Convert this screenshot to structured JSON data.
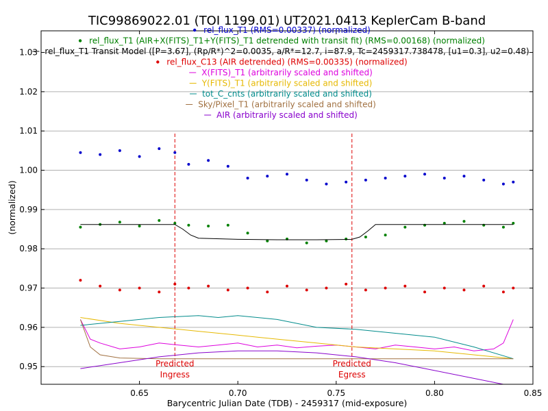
{
  "chart_data": {
    "type": "scatter",
    "title": "TIC99869022.01  (TOI 1199.01)  UT2021.0413 KeplerCam B-band",
    "xlabel": "Barycentric Julian Date (TDB) - 2459317 (mid-exposure)",
    "ylabel": "(normalized)",
    "xlim": [
      0.6,
      0.85
    ],
    "ylim": [
      0.9455,
      1.0355
    ],
    "xticks": [
      0.65,
      0.7,
      0.75,
      0.8,
      0.85
    ],
    "xtick_labels": [
      "0.65",
      "0.70",
      "0.75",
      "0.80",
      "0.85"
    ],
    "yticks": [
      0.95,
      0.96,
      0.97,
      0.98,
      0.99,
      1.0,
      1.01,
      1.02,
      1.03
    ],
    "ytick_labels": [
      "0.95",
      "0.96",
      "0.97",
      "0.98",
      "0.99",
      "1.00",
      "1.01",
      "1.02",
      "1.03"
    ],
    "grid": "horizontal",
    "legend_position": "top-center",
    "legend": [
      {
        "label": "rel_flux_T1 (RMS=0.00337) (normalized)",
        "color": "#0000cc",
        "marker": "dot"
      },
      {
        "label": "rel_flux_T1 (AIR+X(FITS)_T1+Y(FITS)_T1 detrended with transit fit) (RMS=0.00168) (normalized)",
        "color": "#008000",
        "marker": "dot"
      },
      {
        "label": "rel_flux_T1 Transit Model ([P=3.67], (Rp/R*)^2=0.0035, a/R*=12.7, i=87.9, Tc=2459317.738478, [u1=0.3], u2=0.48)",
        "color": "#000000",
        "marker": "line"
      },
      {
        "label": "rel_flux_C13 (AIR detrended) (RMS=0.00335) (normalized)",
        "color": "#dd0000",
        "marker": "dot"
      },
      {
        "label": "X(FITS)_T1 (arbitrarily scaled and shifted)",
        "color": "#dd00dd",
        "marker": "line"
      },
      {
        "label": "Y(FITS)_T1 (arbitrarily scaled and shifted)",
        "color": "#e6b800",
        "marker": "line"
      },
      {
        "label": "tot_C_cnts (arbitrarily scaled and shifted)",
        "color": "#008b8b",
        "marker": "line"
      },
      {
        "label": "Sky/Pixel_T1 (arbitrarily scaled and shifted)",
        "color": "#a07040",
        "marker": "line"
      },
      {
        "label": "AIR (arbitrarily scaled and shifted)",
        "color": "#8800cc",
        "marker": "line"
      }
    ],
    "annotations": [
      {
        "x": 0.668,
        "line1": "Predicted",
        "line2": "Ingress",
        "color": "#dd0000"
      },
      {
        "x": 0.758,
        "line1": "Predicted",
        "line2": "Egress",
        "color": "#dd0000"
      }
    ],
    "series": [
      {
        "name": "rel_flux_T1 (RMS=0.00337) (normalized)",
        "color": "#0000cc",
        "kind": "points",
        "x": [
          0.62,
          0.63,
          0.64,
          0.65,
          0.66,
          0.668,
          0.675,
          0.685,
          0.695,
          0.705,
          0.715,
          0.725,
          0.735,
          0.745,
          0.755,
          0.765,
          0.775,
          0.785,
          0.795,
          0.805,
          0.815,
          0.825,
          0.835,
          0.84
        ],
        "y": [
          1.0045,
          1.004,
          1.005,
          1.0035,
          1.0055,
          1.0045,
          1.0015,
          1.0025,
          1.001,
          0.998,
          0.9985,
          0.999,
          0.9975,
          0.9965,
          0.997,
          0.9975,
          0.998,
          0.9985,
          0.999,
          0.998,
          0.9985,
          0.9975,
          0.9965,
          0.997
        ]
      },
      {
        "name": "rel_flux_T1 (AIR+X(FITS)_T1+Y(FITS)_T1 detrended with transit fit) (RMS=0.00168) (normalized)",
        "color": "#008000",
        "kind": "points",
        "x": [
          0.62,
          0.63,
          0.64,
          0.65,
          0.66,
          0.668,
          0.675,
          0.685,
          0.695,
          0.705,
          0.715,
          0.725,
          0.735,
          0.745,
          0.755,
          0.765,
          0.775,
          0.785,
          0.795,
          0.805,
          0.815,
          0.825,
          0.835,
          0.84
        ],
        "y": [
          0.9855,
          0.9862,
          0.9868,
          0.9858,
          0.9872,
          0.9865,
          0.986,
          0.9858,
          0.986,
          0.984,
          0.982,
          0.9825,
          0.9815,
          0.982,
          0.9825,
          0.983,
          0.9835,
          0.9855,
          0.986,
          0.9865,
          0.987,
          0.986,
          0.9855,
          0.9865
        ]
      },
      {
        "name": "rel_flux_T1 Transit Model ([P=3.67], (Rp/R*)^2=0.0035, a/R*=12.7, i=87.9, Tc=2459317.738478, [u1=0.3], u2=0.48)",
        "color": "#000000",
        "kind": "line",
        "x": [
          0.62,
          0.668,
          0.672,
          0.676,
          0.68,
          0.7,
          0.72,
          0.74,
          0.758,
          0.762,
          0.766,
          0.77,
          0.8,
          0.84
        ],
        "y": [
          0.9862,
          0.9862,
          0.985,
          0.9835,
          0.9827,
          0.9824,
          0.9823,
          0.9823,
          0.9824,
          0.983,
          0.9845,
          0.9862,
          0.9862,
          0.9862
        ]
      },
      {
        "name": "rel_flux_C13 (AIR detrended) (RMS=0.00335) (normalized)",
        "color": "#dd0000",
        "kind": "points",
        "x": [
          0.62,
          0.63,
          0.64,
          0.65,
          0.66,
          0.668,
          0.675,
          0.685,
          0.695,
          0.705,
          0.715,
          0.725,
          0.735,
          0.745,
          0.755,
          0.765,
          0.775,
          0.785,
          0.795,
          0.805,
          0.815,
          0.825,
          0.835,
          0.84
        ],
        "y": [
          0.972,
          0.9705,
          0.9695,
          0.97,
          0.969,
          0.971,
          0.97,
          0.9705,
          0.9695,
          0.97,
          0.969,
          0.9705,
          0.9695,
          0.97,
          0.971,
          0.9695,
          0.97,
          0.9705,
          0.969,
          0.97,
          0.9695,
          0.9705,
          0.969,
          0.97
        ]
      },
      {
        "name": "X(FITS)_T1 (arbitrarily scaled and shifted)",
        "color": "#dd00dd",
        "kind": "line",
        "x": [
          0.62,
          0.625,
          0.63,
          0.64,
          0.65,
          0.66,
          0.67,
          0.68,
          0.69,
          0.7,
          0.71,
          0.72,
          0.73,
          0.74,
          0.75,
          0.76,
          0.77,
          0.78,
          0.79,
          0.8,
          0.81,
          0.82,
          0.83,
          0.835,
          0.84
        ],
        "y": [
          0.962,
          0.957,
          0.956,
          0.9545,
          0.955,
          0.956,
          0.9555,
          0.955,
          0.9555,
          0.956,
          0.955,
          0.9555,
          0.9548,
          0.9552,
          0.9555,
          0.955,
          0.9545,
          0.9555,
          0.955,
          0.9545,
          0.955,
          0.954,
          0.9545,
          0.956,
          0.962
        ]
      },
      {
        "name": "Y(FITS)_T1 (arbitrarily scaled and shifted)",
        "color": "#e6b800",
        "kind": "line",
        "x": [
          0.62,
          0.64,
          0.66,
          0.68,
          0.7,
          0.72,
          0.74,
          0.76,
          0.78,
          0.8,
          0.82,
          0.84
        ],
        "y": [
          0.9625,
          0.961,
          0.96,
          0.959,
          0.958,
          0.957,
          0.956,
          0.955,
          0.9545,
          0.954,
          0.953,
          0.952
        ]
      },
      {
        "name": "tot_C_cnts (arbitrarily scaled and shifted)",
        "color": "#008b8b",
        "kind": "line",
        "x": [
          0.62,
          0.64,
          0.66,
          0.68,
          0.69,
          0.7,
          0.72,
          0.74,
          0.76,
          0.78,
          0.8,
          0.82,
          0.84
        ],
        "y": [
          0.9605,
          0.9615,
          0.9625,
          0.963,
          0.9625,
          0.963,
          0.962,
          0.96,
          0.9595,
          0.9585,
          0.9575,
          0.955,
          0.952
        ]
      },
      {
        "name": "Sky/Pixel_T1 (arbitrarily scaled and shifted)",
        "color": "#a07040",
        "kind": "line",
        "x": [
          0.62,
          0.625,
          0.63,
          0.64,
          0.66,
          0.7,
          0.76,
          0.8,
          0.84
        ],
        "y": [
          0.962,
          0.955,
          0.953,
          0.9522,
          0.952,
          0.952,
          0.952,
          0.952,
          0.952
        ]
      },
      {
        "name": "AIR (arbitrarily scaled and shifted)",
        "color": "#8800cc",
        "kind": "line",
        "x": [
          0.62,
          0.64,
          0.66,
          0.68,
          0.7,
          0.72,
          0.74,
          0.76,
          0.78,
          0.8,
          0.82,
          0.84
        ],
        "y": [
          0.9495,
          0.951,
          0.9525,
          0.9535,
          0.954,
          0.954,
          0.9535,
          0.9525,
          0.951,
          0.949,
          0.947,
          0.945
        ]
      }
    ]
  }
}
